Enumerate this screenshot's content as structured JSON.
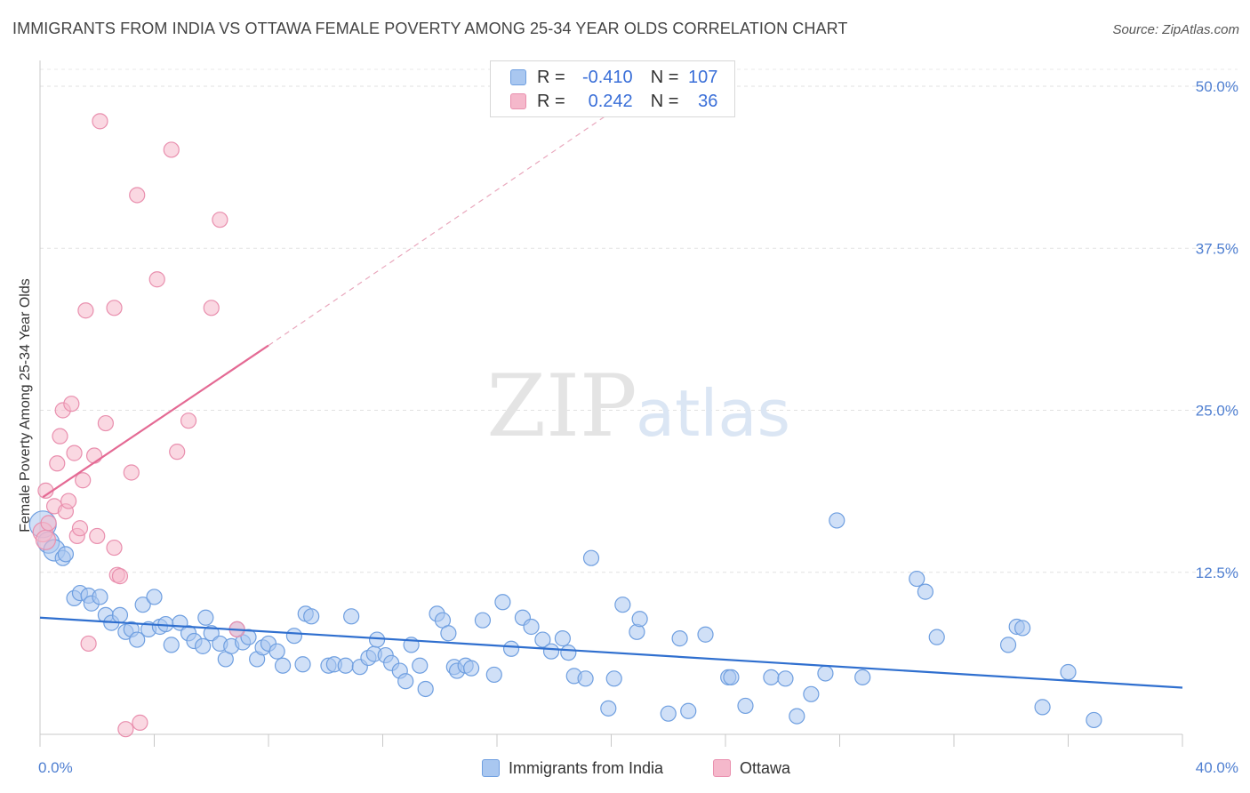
{
  "header": {
    "title": "IMMIGRANTS FROM INDIA VS OTTAWA FEMALE POVERTY AMONG 25-34 YEAR OLDS CORRELATION CHART",
    "source": "Source: ZipAtlas.com"
  },
  "watermark": {
    "zip": "ZIP",
    "atlas": "atlas"
  },
  "legend": {
    "rows": [
      {
        "r_label": "R =",
        "r_value": "-0.410",
        "n_label": "N =",
        "n_value": "107",
        "color": "#a9c7f0"
      },
      {
        "r_label": "R =",
        "r_value": "0.242",
        "n_label": "N =",
        "n_value": "36",
        "color": "#f5b8cb"
      }
    ]
  },
  "bottom_legend": {
    "items": [
      {
        "label": "Immigrants from India",
        "color": "#a9c7f0"
      },
      {
        "label": "Ottawa",
        "color": "#f5b8cb"
      }
    ]
  },
  "chart_data": {
    "type": "scatter",
    "title": "IMMIGRANTS FROM INDIA VS OTTAWA FEMALE POVERTY AMONG 25-34 YEAR OLDS CORRELATION CHART",
    "xlabel": "",
    "ylabel": "Female Poverty Among 25-34 Year Olds",
    "xlim": [
      0,
      40
    ],
    "ylim": [
      0,
      50
    ],
    "x_tick_labels": [
      {
        "value": 0,
        "label": "0.0%"
      },
      {
        "value": 40,
        "label": "40.0%"
      }
    ],
    "y_tick_labels": [
      {
        "value": 12.5,
        "label": "12.5%"
      },
      {
        "value": 25,
        "label": "25.0%"
      },
      {
        "value": 37.5,
        "label": "37.5%"
      },
      {
        "value": 50,
        "label": "50.0%"
      }
    ],
    "legend_position": "top-center",
    "series": [
      {
        "name": "Immigrants from India",
        "color": "#a9c7f0",
        "stroke": "#6f9fe0",
        "trend": {
          "x": [
            0,
            40
          ],
          "y": [
            9.0,
            3.6
          ],
          "color": "#2f6fcf"
        },
        "points": [
          [
            0.1,
            16.2
          ],
          [
            0.3,
            14.8
          ],
          [
            0.5,
            14.2
          ],
          [
            0.8,
            13.6
          ],
          [
            0.9,
            13.9
          ],
          [
            1.2,
            10.5
          ],
          [
            1.4,
            10.9
          ],
          [
            1.7,
            10.7
          ],
          [
            1.8,
            10.1
          ],
          [
            2.1,
            10.6
          ],
          [
            2.3,
            9.2
          ],
          [
            2.5,
            8.6
          ],
          [
            2.8,
            9.2
          ],
          [
            3.0,
            7.9
          ],
          [
            3.2,
            8.1
          ],
          [
            3.4,
            7.3
          ],
          [
            3.6,
            10.0
          ],
          [
            3.8,
            8.1
          ],
          [
            4.0,
            10.6
          ],
          [
            4.2,
            8.3
          ],
          [
            4.4,
            8.5
          ],
          [
            4.6,
            6.9
          ],
          [
            4.9,
            8.6
          ],
          [
            5.2,
            7.8
          ],
          [
            5.4,
            7.2
          ],
          [
            5.7,
            6.8
          ],
          [
            5.8,
            9.0
          ],
          [
            6.0,
            7.8
          ],
          [
            6.3,
            7.0
          ],
          [
            6.5,
            5.8
          ],
          [
            6.7,
            6.8
          ],
          [
            6.9,
            8.1
          ],
          [
            7.1,
            7.1
          ],
          [
            7.3,
            7.5
          ],
          [
            7.6,
            5.8
          ],
          [
            7.8,
            6.7
          ],
          [
            8.0,
            7.0
          ],
          [
            8.3,
            6.4
          ],
          [
            8.5,
            5.3
          ],
          [
            8.9,
            7.6
          ],
          [
            9.2,
            5.4
          ],
          [
            9.3,
            9.3
          ],
          [
            9.5,
            9.1
          ],
          [
            10.1,
            5.3
          ],
          [
            10.3,
            5.4
          ],
          [
            10.7,
            5.3
          ],
          [
            10.9,
            9.1
          ],
          [
            11.2,
            5.2
          ],
          [
            11.5,
            5.9
          ],
          [
            11.7,
            6.2
          ],
          [
            11.8,
            7.3
          ],
          [
            12.1,
            6.1
          ],
          [
            12.3,
            5.5
          ],
          [
            12.6,
            4.9
          ],
          [
            12.8,
            4.1
          ],
          [
            13.0,
            6.9
          ],
          [
            13.3,
            5.3
          ],
          [
            13.5,
            3.5
          ],
          [
            13.9,
            9.3
          ],
          [
            14.1,
            8.8
          ],
          [
            14.3,
            7.8
          ],
          [
            14.5,
            5.2
          ],
          [
            14.6,
            4.9
          ],
          [
            14.9,
            5.3
          ],
          [
            15.1,
            5.1
          ],
          [
            15.5,
            8.8
          ],
          [
            15.9,
            4.6
          ],
          [
            16.2,
            10.2
          ],
          [
            16.5,
            6.6
          ],
          [
            16.9,
            9.0
          ],
          [
            17.2,
            8.3
          ],
          [
            17.6,
            7.3
          ],
          [
            17.9,
            6.4
          ],
          [
            18.3,
            7.4
          ],
          [
            18.5,
            6.3
          ],
          [
            18.7,
            4.5
          ],
          [
            19.1,
            4.3
          ],
          [
            19.3,
            13.6
          ],
          [
            19.9,
            2.0
          ],
          [
            20.1,
            4.3
          ],
          [
            20.4,
            10.0
          ],
          [
            20.9,
            7.9
          ],
          [
            21.0,
            8.9
          ],
          [
            22.0,
            1.6
          ],
          [
            22.4,
            7.4
          ],
          [
            22.7,
            1.8
          ],
          [
            23.3,
            7.7
          ],
          [
            24.1,
            4.4
          ],
          [
            24.2,
            4.4
          ],
          [
            24.7,
            2.2
          ],
          [
            25.6,
            4.4
          ],
          [
            26.1,
            4.3
          ],
          [
            26.5,
            1.4
          ],
          [
            27.0,
            3.1
          ],
          [
            27.5,
            4.7
          ],
          [
            27.9,
            16.5
          ],
          [
            28.8,
            4.4
          ],
          [
            30.7,
            12.0
          ],
          [
            31.0,
            11.0
          ],
          [
            31.4,
            7.5
          ],
          [
            33.9,
            6.9
          ],
          [
            34.2,
            8.3
          ],
          [
            34.4,
            8.2
          ],
          [
            35.1,
            2.1
          ],
          [
            36.0,
            4.8
          ],
          [
            36.9,
            1.1
          ]
        ]
      },
      {
        "name": "Ottawa",
        "color": "#f5b8cb",
        "stroke": "#e98fae",
        "trend": {
          "x": [
            0.1,
            8.0
          ],
          "y": [
            18.3,
            30.0
          ],
          "color": "#e46a94"
        },
        "trend_extension": {
          "x": [
            8.0,
            20.0
          ],
          "y": [
            30.0,
            48.0
          ],
          "color": "#e9a8bd"
        },
        "points": [
          [
            0.2,
            18.8
          ],
          [
            0.1,
            15.6
          ],
          [
            0.2,
            15.0
          ],
          [
            0.3,
            16.3
          ],
          [
            0.5,
            17.6
          ],
          [
            0.6,
            20.9
          ],
          [
            0.7,
            23.0
          ],
          [
            0.8,
            25.0
          ],
          [
            0.9,
            17.2
          ],
          [
            1.0,
            18.0
          ],
          [
            1.1,
            25.5
          ],
          [
            1.2,
            21.7
          ],
          [
            1.3,
            15.3
          ],
          [
            1.4,
            15.9
          ],
          [
            1.5,
            19.6
          ],
          [
            1.6,
            32.7
          ],
          [
            1.7,
            7.0
          ],
          [
            1.9,
            21.5
          ],
          [
            2.0,
            15.3
          ],
          [
            2.1,
            47.3
          ],
          [
            2.3,
            24.0
          ],
          [
            2.6,
            14.4
          ],
          [
            2.6,
            32.9
          ],
          [
            2.7,
            12.3
          ],
          [
            2.8,
            12.2
          ],
          [
            3.0,
            0.4
          ],
          [
            3.2,
            20.2
          ],
          [
            3.4,
            41.6
          ],
          [
            3.5,
            0.9
          ],
          [
            4.1,
            35.1
          ],
          [
            4.6,
            45.1
          ],
          [
            4.8,
            21.8
          ],
          [
            5.2,
            24.2
          ],
          [
            6.0,
            32.9
          ],
          [
            6.3,
            39.7
          ],
          [
            6.9,
            8.1
          ]
        ]
      }
    ]
  }
}
